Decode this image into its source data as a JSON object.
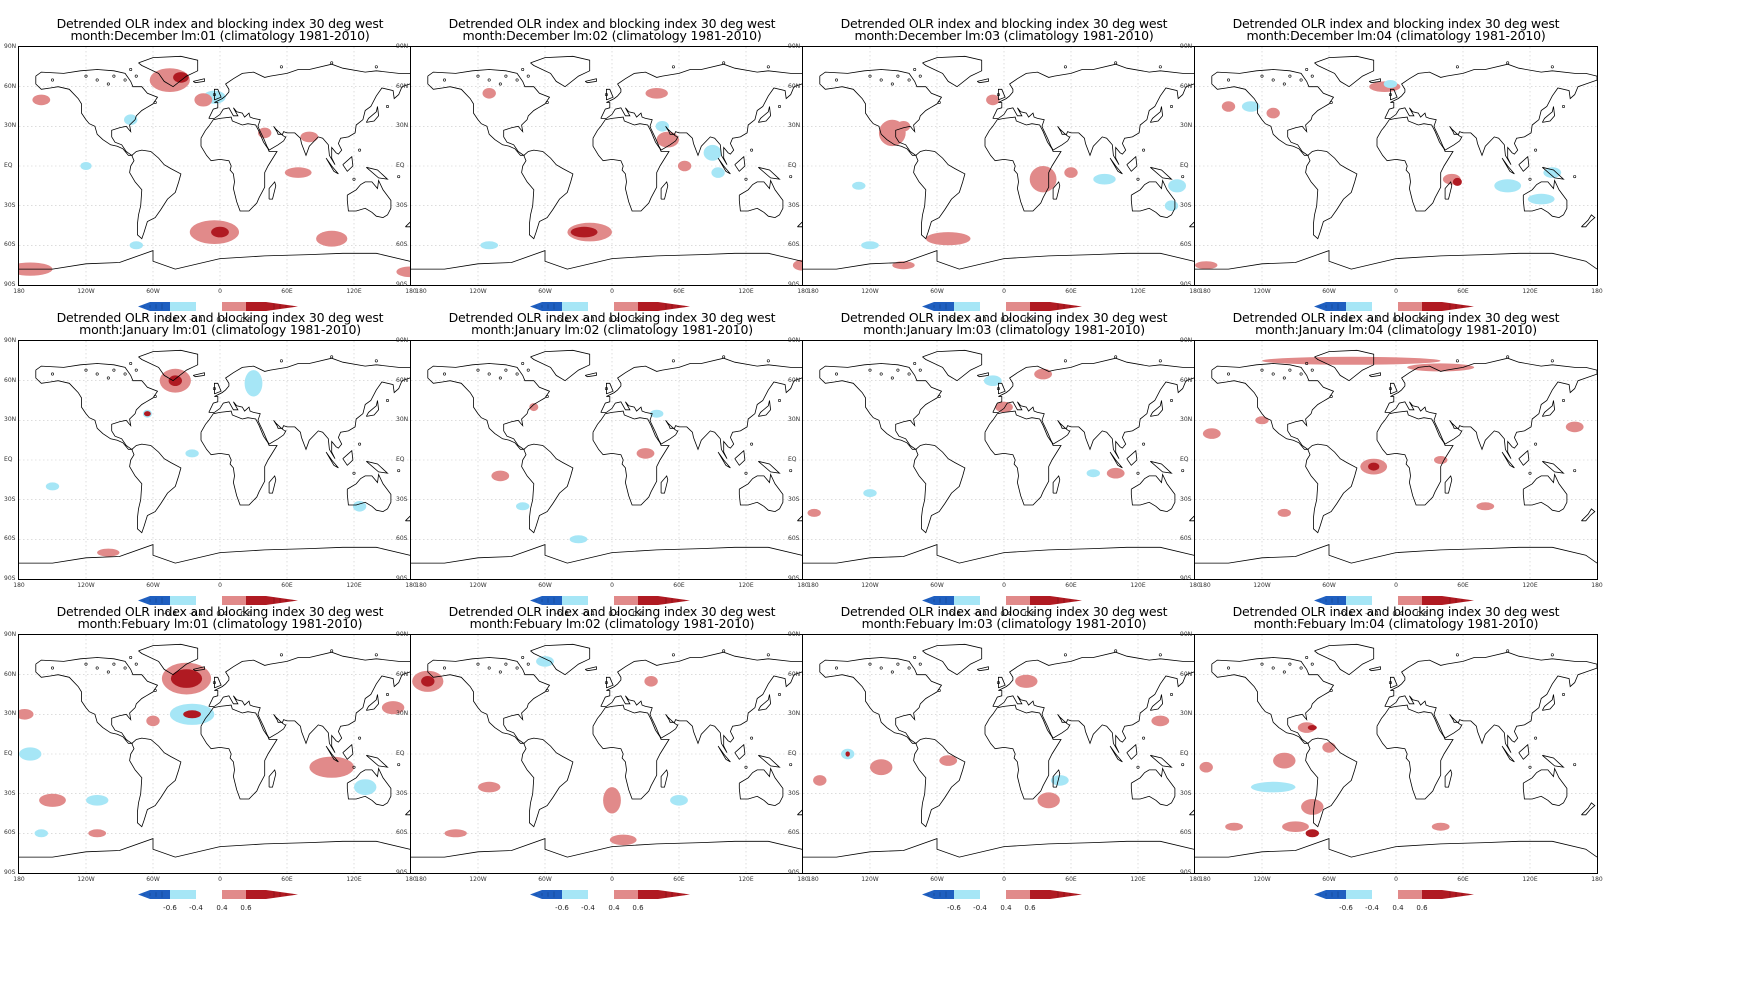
{
  "title_line1": "Detrended OLR index and blocking index 30 deg west",
  "climatology_label": "(climatology 1981-2010)",
  "rows": [
    {
      "month": "December",
      "lags": [
        "lm:01",
        "lm:02",
        "lm:03",
        "lm:04"
      ]
    },
    {
      "month": "January",
      "lags": [
        "lm:01",
        "lm:02",
        "lm:03",
        "lm:04"
      ]
    },
    {
      "month": "Febuary",
      "lags": [
        "lm:01",
        "lm:02",
        "lm:03",
        "lm:04"
      ]
    }
  ],
  "y_axis_labels": [
    "90N",
    "60N",
    "30N",
    "EQ",
    "30S",
    "60S",
    "90S"
  ],
  "x_axis_labels": [
    "180",
    "120W",
    "60W",
    "0",
    "60E",
    "120E",
    "180"
  ],
  "colorbar_labels": [
    "-0.6",
    "-0.4",
    "0.4",
    "0.6"
  ],
  "colors": {
    "dark_blue": "#1f5fc0",
    "light_blue": "#a6e6f6",
    "light_red": "#e18a8a",
    "dark_red": "#b01a22",
    "coast": "#000000",
    "grid": "#c8c8c8"
  },
  "anomalies": [
    [
      [
        [
          "r",
          -45,
          65,
          18,
          9
        ],
        [
          "dr",
          -35,
          67,
          7,
          4
        ],
        [
          "b",
          -5,
          52,
          10,
          5
        ],
        [
          "r",
          -15,
          50,
          8,
          5
        ],
        [
          "r",
          -160,
          50,
          8,
          4
        ],
        [
          "b",
          -80,
          35,
          6,
          4
        ],
        [
          "r",
          80,
          22,
          8,
          4
        ],
        [
          "r",
          40,
          25,
          6,
          4
        ],
        [
          "r",
          70,
          -5,
          12,
          4
        ],
        [
          "b",
          -120,
          0,
          5,
          3
        ],
        [
          "r",
          -5,
          -50,
          22,
          9
        ],
        [
          "dr",
          0,
          -50,
          8,
          4
        ],
        [
          "r",
          100,
          -55,
          14,
          6
        ],
        [
          "r",
          -170,
          -78,
          20,
          5
        ],
        [
          "b",
          -75,
          -60,
          6,
          3
        ],
        [
          "r",
          170,
          -80,
          12,
          4
        ]
      ],
      [
        [
          "r",
          -110,
          55,
          6,
          4
        ],
        [
          "r",
          40,
          55,
          10,
          4
        ],
        [
          "b",
          45,
          30,
          6,
          4
        ],
        [
          "r",
          50,
          20,
          10,
          6
        ],
        [
          "r",
          65,
          0,
          6,
          4
        ],
        [
          "b",
          90,
          10,
          8,
          6
        ],
        [
          "b",
          95,
          -5,
          6,
          4
        ],
        [
          "r",
          -20,
          -50,
          20,
          7
        ],
        [
          "dr",
          -25,
          -50,
          12,
          4
        ],
        [
          "b",
          -110,
          -60,
          8,
          3
        ],
        [
          "r",
          170,
          -75,
          8,
          4
        ]
      ],
      [
        [
          "r",
          -100,
          25,
          12,
          10
        ],
        [
          "r",
          -90,
          30,
          6,
          4
        ],
        [
          "r",
          -10,
          50,
          6,
          4
        ],
        [
          "r",
          35,
          -10,
          12,
          10
        ],
        [
          "r",
          60,
          -5,
          6,
          4
        ],
        [
          "b",
          90,
          -10,
          10,
          4
        ],
        [
          "b",
          155,
          -15,
          8,
          5
        ],
        [
          "b",
          150,
          -30,
          6,
          4
        ],
        [
          "r",
          -50,
          -55,
          20,
          5
        ],
        [
          "b",
          -120,
          -60,
          8,
          3
        ],
        [
          "r",
          -90,
          -75,
          10,
          3
        ],
        [
          "b",
          -130,
          -15,
          6,
          3
        ]
      ],
      [
        [
          "r",
          -10,
          60,
          14,
          4
        ],
        [
          "b",
          -5,
          62,
          6,
          3
        ],
        [
          "r",
          -150,
          45,
          6,
          4
        ],
        [
          "b",
          -130,
          45,
          8,
          4
        ],
        [
          "r",
          -110,
          40,
          6,
          4
        ],
        [
          "r",
          50,
          -10,
          8,
          4
        ],
        [
          "dr",
          55,
          -12,
          4,
          3
        ],
        [
          "b",
          100,
          -15,
          12,
          5
        ],
        [
          "b",
          130,
          -25,
          12,
          4
        ],
        [
          "r",
          -170,
          -75,
          10,
          3
        ],
        [
          "b",
          140,
          -5,
          8,
          4
        ]
      ]
    ],
    [
      [
        [
          "r",
          -40,
          60,
          14,
          9
        ],
        [
          "dr",
          -40,
          60,
          6,
          4
        ],
        [
          "b",
          30,
          58,
          8,
          10
        ],
        [
          "b",
          -65,
          35,
          4,
          3
        ],
        [
          "dr",
          -65,
          35,
          3,
          2
        ],
        [
          "b",
          -25,
          5,
          6,
          3
        ],
        [
          "b",
          125,
          -35,
          6,
          4
        ],
        [
          "r",
          -100,
          -70,
          10,
          3
        ],
        [
          "b",
          -150,
          -20,
          6,
          3
        ]
      ],
      [
        [
          "r",
          30,
          5,
          8,
          4
        ],
        [
          "r",
          -100,
          -12,
          8,
          4
        ],
        [
          "b",
          -80,
          -35,
          6,
          3
        ],
        [
          "b",
          -30,
          -60,
          8,
          3
        ],
        [
          "r",
          -70,
          40,
          4,
          3
        ],
        [
          "b",
          40,
          35,
          6,
          3
        ]
      ],
      [
        [
          "r",
          35,
          65,
          8,
          4
        ],
        [
          "b",
          -10,
          60,
          8,
          4
        ],
        [
          "r",
          0,
          40,
          8,
          4
        ],
        [
          "r",
          100,
          -10,
          8,
          4
        ],
        [
          "b",
          80,
          -10,
          6,
          3
        ],
        [
          "b",
          -120,
          -25,
          6,
          3
        ],
        [
          "r",
          -170,
          -40,
          6,
          3
        ]
      ],
      [
        [
          "r",
          -40,
          75,
          80,
          3
        ],
        [
          "r",
          40,
          70,
          30,
          3
        ],
        [
          "r",
          -20,
          -5,
          12,
          6
        ],
        [
          "dr",
          -20,
          -5,
          5,
          3
        ],
        [
          "r",
          160,
          25,
          8,
          4
        ],
        [
          "r",
          -165,
          20,
          8,
          4
        ],
        [
          "r",
          -120,
          30,
          6,
          3
        ],
        [
          "r",
          40,
          0,
          6,
          3
        ],
        [
          "r",
          80,
          -35,
          8,
          3
        ],
        [
          "r",
          -100,
          -40,
          6,
          3
        ]
      ]
    ],
    [
      [
        [
          "r",
          -30,
          57,
          22,
          12
        ],
        [
          "dr",
          -30,
          57,
          14,
          7
        ],
        [
          "b",
          -25,
          30,
          20,
          8
        ],
        [
          "dr",
          -25,
          30,
          8,
          3
        ],
        [
          "r",
          -60,
          25,
          6,
          4
        ],
        [
          "r",
          100,
          -10,
          20,
          8
        ],
        [
          "b",
          130,
          -25,
          10,
          6
        ],
        [
          "r",
          155,
          35,
          10,
          5
        ],
        [
          "b",
          -170,
          0,
          10,
          5
        ],
        [
          "r",
          -150,
          -35,
          12,
          5
        ],
        [
          "b",
          -110,
          -35,
          10,
          4
        ],
        [
          "r",
          -110,
          -60,
          8,
          3
        ],
        [
          "b",
          -160,
          -60,
          6,
          3
        ],
        [
          "r",
          -175,
          30,
          8,
          4
        ]
      ],
      [
        [
          "r",
          -165,
          55,
          14,
          8
        ],
        [
          "dr",
          -165,
          55,
          6,
          4
        ],
        [
          "b",
          -60,
          70,
          8,
          4
        ],
        [
          "r",
          35,
          55,
          6,
          4
        ],
        [
          "r",
          -110,
          -25,
          10,
          4
        ],
        [
          "r",
          0,
          -35,
          8,
          10
        ],
        [
          "b",
          60,
          -35,
          8,
          4
        ],
        [
          "r",
          10,
          -65,
          12,
          4
        ],
        [
          "r",
          -140,
          -60,
          10,
          3
        ]
      ],
      [
        [
          "r",
          20,
          55,
          10,
          5
        ],
        [
          "r",
          40,
          -35,
          10,
          6
        ],
        [
          "b",
          50,
          -20,
          8,
          4
        ],
        [
          "r",
          -110,
          -10,
          10,
          6
        ],
        [
          "b",
          -140,
          0,
          6,
          4
        ],
        [
          "dr",
          -140,
          0,
          2,
          2
        ],
        [
          "r",
          -165,
          -20,
          6,
          4
        ],
        [
          "r",
          -50,
          -5,
          8,
          4
        ],
        [
          "r",
          140,
          25,
          8,
          4
        ]
      ],
      [
        [
          "r",
          -80,
          20,
          8,
          4
        ],
        [
          "dr",
          -75,
          20,
          4,
          2
        ],
        [
          "r",
          -60,
          5,
          6,
          4
        ],
        [
          "r",
          -100,
          -5,
          10,
          6
        ],
        [
          "b",
          -110,
          -25,
          20,
          4
        ],
        [
          "r",
          -75,
          -40,
          10,
          6
        ],
        [
          "r",
          -90,
          -55,
          12,
          4
        ],
        [
          "dr",
          -75,
          -60,
          6,
          3
        ],
        [
          "r",
          -145,
          -55,
          8,
          3
        ],
        [
          "r",
          40,
          -55,
          8,
          3
        ],
        [
          "r",
          -170,
          -10,
          6,
          4
        ]
      ]
    ]
  ]
}
